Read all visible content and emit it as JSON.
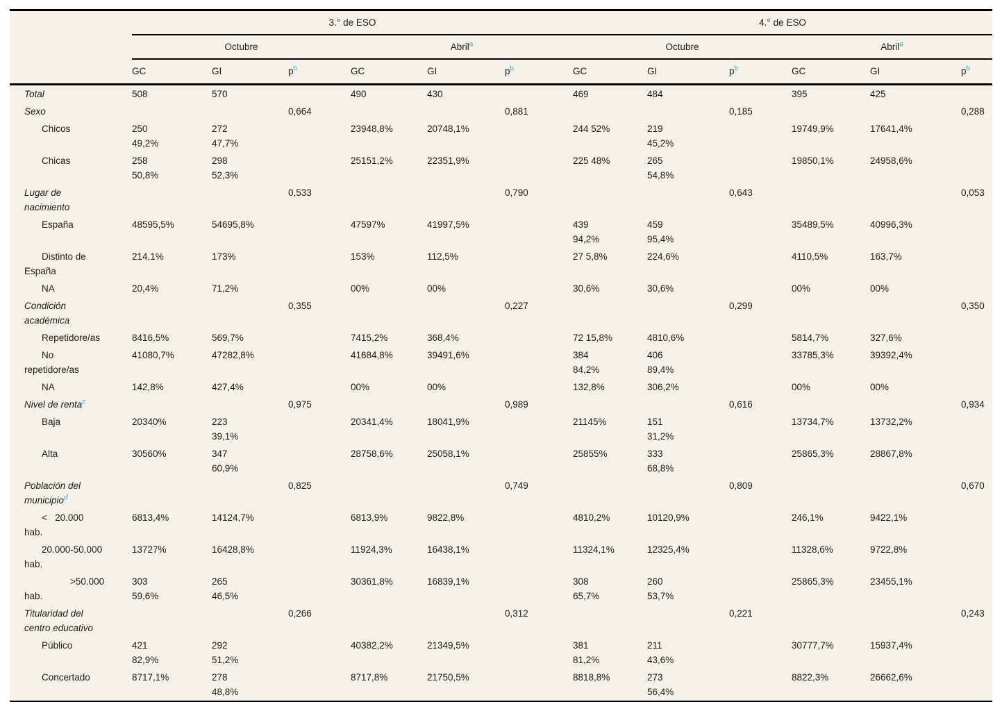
{
  "table": {
    "accent_color": "#3AA7DB",
    "background_color": "#F6F2E9",
    "grade_headers": [
      {
        "label": "3.° de ESO"
      },
      {
        "label": "4.° de ESO"
      }
    ],
    "period_headers": [
      {
        "label": "Octubre",
        "sup": ""
      },
      {
        "label": "Abril",
        "sup": "a"
      },
      {
        "label": "Octubre",
        "sup": ""
      },
      {
        "label": "Abril",
        "sup": "a"
      }
    ],
    "col_headers": [
      {
        "label": "GC",
        "sup": ""
      },
      {
        "label": "GI",
        "sup": ""
      },
      {
        "label": "p",
        "sup": "b"
      },
      {
        "label": "GC",
        "sup": ""
      },
      {
        "label": "GI",
        "sup": ""
      },
      {
        "label": "p",
        "sup": "b"
      },
      {
        "label": "GC",
        "sup": ""
      },
      {
        "label": "GI",
        "sup": ""
      },
      {
        "label": "p",
        "sup": "b"
      },
      {
        "label": "GC",
        "sup": ""
      },
      {
        "label": "GI",
        "sup": ""
      },
      {
        "label": "p",
        "sup": "b"
      }
    ],
    "rows": [
      {
        "label_lines": [
          "Total"
        ],
        "indents": [
          0
        ],
        "italic": true,
        "label_sup": "",
        "cells": [
          "508",
          "570",
          "",
          "490",
          "430",
          "",
          "469",
          "484",
          "",
          "395",
          "425",
          ""
        ]
      },
      {
        "label_lines": [
          "Sexo"
        ],
        "indents": [
          0
        ],
        "italic": true,
        "label_sup": "",
        "cells": [
          "",
          "",
          "0,664",
          "",
          "",
          "0,881",
          "",
          "",
          "0,185",
          "",
          "",
          "0,288"
        ]
      },
      {
        "label_lines": [
          "Chicos"
        ],
        "indents": [
          1
        ],
        "italic": false,
        "label_sup": "",
        "cells": [
          "250\n49,2%",
          "272\n47,7%",
          "",
          "23948,8%",
          "20748,1%",
          "",
          "244 52%",
          "219\n45,2%",
          "",
          "19749,9%",
          "17641,4%",
          ""
        ]
      },
      {
        "label_lines": [
          "Chicas"
        ],
        "indents": [
          1
        ],
        "italic": false,
        "label_sup": "",
        "cells": [
          "258\n50,8%",
          "298\n52,3%",
          "",
          "25151,2%",
          "22351,9%",
          "",
          "225 48%",
          "265\n54,8%",
          "",
          "19850,1%",
          "24958,6%",
          ""
        ]
      },
      {
        "label_lines": [
          "Lugar de",
          "nacimiento"
        ],
        "indents": [
          0,
          0
        ],
        "italic": true,
        "label_sup": "",
        "cells": [
          "",
          "",
          "0,533",
          "",
          "",
          "0,790",
          "",
          "",
          "0,643",
          "",
          "",
          "0,053"
        ]
      },
      {
        "label_lines": [
          "España"
        ],
        "indents": [
          1
        ],
        "italic": false,
        "label_sup": "",
        "cells": [
          "48595,5%",
          "54695,8%",
          "",
          "47597%",
          "41997,5%",
          "",
          "439\n94,2%",
          "459\n95,4%",
          "",
          "35489,5%",
          "40996,3%",
          ""
        ]
      },
      {
        "label_lines": [
          "Distinto de",
          "España"
        ],
        "indents": [
          1,
          0
        ],
        "italic": false,
        "label_sup": "",
        "cells": [
          "214,1%",
          "173%",
          "",
          "153%",
          "112,5%",
          "",
          "27 5,8%",
          "224,6%",
          "",
          "4110,5%",
          "163,7%",
          ""
        ]
      },
      {
        "label_lines": [
          "NA"
        ],
        "indents": [
          1
        ],
        "italic": false,
        "label_sup": "",
        "cells": [
          "20,4%",
          "71,2%",
          "",
          "00%",
          "00%",
          "",
          "30,6%",
          "30,6%",
          "",
          "00%",
          "00%",
          ""
        ]
      },
      {
        "label_lines": [
          "Condición",
          "académica"
        ],
        "indents": [
          0,
          0
        ],
        "italic": true,
        "label_sup": "",
        "cells": [
          "",
          "",
          "0,355",
          "",
          "",
          "0,227",
          "",
          "",
          "0,299",
          "",
          "",
          "0,350"
        ]
      },
      {
        "label_lines": [
          "Repetidore/as"
        ],
        "indents": [
          1
        ],
        "italic": false,
        "label_sup": "",
        "cells": [
          "8416,5%",
          "569,7%",
          "",
          "7415,2%",
          "368,4%",
          "",
          "72 15,8%",
          "4810,6%",
          "",
          "5814,7%",
          "327,6%",
          ""
        ]
      },
      {
        "label_lines": [
          "No",
          "repetidore/as"
        ],
        "indents": [
          1,
          0
        ],
        "italic": false,
        "label_sup": "",
        "cells": [
          "41080,7%",
          "47282,8%",
          "",
          "41684,8%",
          "39491,6%",
          "",
          "384\n84,2%",
          "406\n89,4%",
          "",
          "33785,3%",
          "39392,4%",
          ""
        ]
      },
      {
        "label_lines": [
          "NA"
        ],
        "indents": [
          1
        ],
        "italic": false,
        "label_sup": "",
        "cells": [
          "142,8%",
          "427,4%",
          "",
          "00%",
          "00%",
          "",
          "132,8%",
          "306,2%",
          "",
          "00%",
          "00%",
          ""
        ]
      },
      {
        "label_lines": [
          "Nivel de renta"
        ],
        "indents": [
          0
        ],
        "italic": true,
        "label_sup": "c",
        "cells": [
          "",
          "",
          "0,975",
          "",
          "",
          "0,989",
          "",
          "",
          "0,616",
          "",
          "",
          "0,934"
        ]
      },
      {
        "label_lines": [
          "Baja"
        ],
        "indents": [
          1
        ],
        "italic": false,
        "label_sup": "",
        "cells": [
          "20340%",
          "223\n39,1%",
          "",
          "20341,4%",
          "18041,9%",
          "",
          "21145%",
          "151\n31,2%",
          "",
          "13734,7%",
          "13732,2%",
          ""
        ]
      },
      {
        "label_lines": [
          "Alta"
        ],
        "indents": [
          1
        ],
        "italic": false,
        "label_sup": "",
        "cells": [
          "30560%",
          "347\n60,9%",
          "",
          "28758,6%",
          "25058,1%",
          "",
          "25855%",
          "333\n68,8%",
          "",
          "25865,3%",
          "28867,8%",
          ""
        ]
      },
      {
        "label_lines": [
          "Población del",
          "municipio"
        ],
        "indents": [
          0,
          0
        ],
        "italic": true,
        "label_sup": "d",
        "cells": [
          "",
          "",
          "0,825",
          "",
          "",
          "0,749",
          "",
          "",
          "0,809",
          "",
          "",
          "0,670"
        ]
      },
      {
        "label_lines": [
          "<   20.000",
          "hab."
        ],
        "indents": [
          1,
          0
        ],
        "italic": false,
        "label_sup": "",
        "cells": [
          "6813,4%",
          "14124,7%",
          "",
          "6813,9%",
          "9822,8%",
          "",
          "4810,2%",
          "10120,9%",
          "",
          "246,1%",
          "9422,1%",
          ""
        ]
      },
      {
        "label_lines": [
          "20.000-50.000",
          "hab."
        ],
        "indents": [
          1,
          0
        ],
        "italic": false,
        "label_sup": "",
        "cells": [
          "13727%",
          "16428,8%",
          "",
          "11924,3%",
          "16438,1%",
          "",
          "11324,1%",
          "12325,4%",
          "",
          "11328,6%",
          "9722,8%",
          ""
        ]
      },
      {
        "label_lines": [
          ">50.000",
          "hab."
        ],
        "indents": [
          2,
          0
        ],
        "italic": false,
        "label_sup": "",
        "cells": [
          "303\n59,6%",
          "265\n46,5%",
          "",
          "30361,8%",
          "16839,1%",
          "",
          "308\n65,7%",
          "260\n53,7%",
          "",
          "25865,3%",
          "23455,1%",
          ""
        ]
      },
      {
        "label_lines": [
          "Titularidad del",
          "centro educativo"
        ],
        "indents": [
          0,
          0
        ],
        "italic": true,
        "label_sup": "",
        "cells": [
          "",
          "",
          "0,266",
          "",
          "",
          "0,312",
          "",
          "",
          "0,221",
          "",
          "",
          "0,243"
        ]
      },
      {
        "label_lines": [
          "Público"
        ],
        "indents": [
          1
        ],
        "italic": false,
        "label_sup": "",
        "cells": [
          "421\n82,9%",
          "292\n51,2%",
          "",
          "40382,2%",
          "21349,5%",
          "",
          "381\n81,2%",
          "211\n43,6%",
          "",
          "30777,7%",
          "15937,4%",
          ""
        ]
      },
      {
        "label_lines": [
          "Concertado"
        ],
        "indents": [
          1
        ],
        "italic": false,
        "label_sup": "",
        "cells": [
          "8717,1%",
          "278\n48,8%",
          "",
          "8717,8%",
          "21750,5%",
          "",
          "8818,8%",
          "273\n56,4%",
          "",
          "8822,3%",
          "26662,6%",
          ""
        ]
      }
    ]
  }
}
